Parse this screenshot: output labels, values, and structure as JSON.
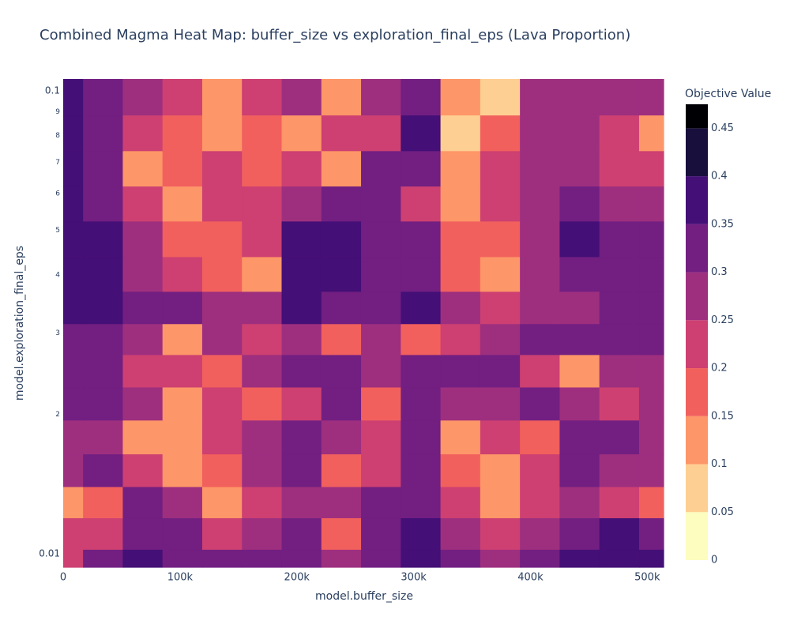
{
  "chart_data": {
    "type": "heatmap",
    "title": "Combined Magma Heat Map: buffer_size vs exploration_final_eps (Lava Proportion)",
    "x_label": "model.buffer_size",
    "y_label": "model.exploration_final_eps",
    "colorbar_title": "Objective Value",
    "y_log": true,
    "xlim": [
      0,
      514000
    ],
    "xticks": [
      0,
      {
        "value": 100000,
        "label": "100k"
      },
      {
        "value": 200000,
        "label": "200k"
      },
      {
        "value": 300000,
        "label": "300k"
      },
      {
        "value": 400000,
        "label": "400k"
      },
      {
        "value": 500000,
        "label": "500k"
      }
    ],
    "ylim": [
      0.00935,
      0.106
    ],
    "yticks": [
      0.01,
      {
        "value": 0.02,
        "label": "2"
      },
      {
        "value": 0.03,
        "label": "3"
      },
      {
        "value": 0.04,
        "label": "4"
      },
      {
        "value": 0.05,
        "label": "5"
      },
      {
        "value": 0.06,
        "label": "6"
      },
      {
        "value": 0.07,
        "label": "7"
      },
      {
        "value": 0.08,
        "label": "8"
      },
      {
        "value": 0.09,
        "label": "9"
      },
      0.1
    ],
    "zlim": [
      0,
      0.475
    ],
    "colorbar_ticks": [
      0,
      0.05,
      0.1,
      0.15,
      0.2,
      0.25,
      0.3,
      0.35,
      0.4,
      0.45
    ],
    "colors": [
      "#fcfdbf",
      "#fecf92",
      "#fd9668",
      "#f1605d",
      "#cd4071",
      "#9e2f7f",
      "#721f81",
      "#440f76",
      "#180f3d",
      "#000004"
    ],
    "x": [
      0,
      34000,
      68000,
      102000,
      136000,
      170000,
      204000,
      238000,
      272000,
      306000,
      340000,
      374000,
      408000,
      442000,
      476000,
      510000
    ],
    "y": [
      0.0095,
      0.011,
      0.013,
      0.015,
      0.018,
      0.021,
      0.025,
      0.029,
      0.034,
      0.04,
      0.048,
      0.057,
      0.068,
      0.081,
      0.097
    ],
    "z": [
      [
        0.22,
        0.3,
        0.35,
        0.33,
        0.3,
        0.33,
        0.3,
        0.28,
        0.33,
        0.36,
        0.3,
        0.25,
        0.3,
        0.36,
        0.36,
        0.36
      ],
      [
        0.22,
        0.2,
        0.33,
        0.3,
        0.2,
        0.25,
        0.3,
        0.15,
        0.3,
        0.35,
        0.28,
        0.2,
        0.25,
        0.33,
        0.35,
        0.33
      ],
      [
        0.12,
        0.18,
        0.3,
        0.25,
        0.12,
        0.2,
        0.28,
        0.25,
        0.3,
        0.32,
        0.2,
        0.12,
        0.2,
        0.25,
        0.2,
        0.15
      ],
      [
        0.25,
        0.3,
        0.2,
        0.13,
        0.18,
        0.25,
        0.3,
        0.15,
        0.2,
        0.3,
        0.15,
        0.1,
        0.2,
        0.3,
        0.28,
        0.25
      ],
      [
        0.28,
        0.25,
        0.12,
        0.1,
        0.22,
        0.28,
        0.3,
        0.25,
        0.22,
        0.3,
        0.12,
        0.2,
        0.15,
        0.3,
        0.3,
        0.28
      ],
      [
        0.3,
        0.3,
        0.28,
        0.1,
        0.2,
        0.15,
        0.2,
        0.3,
        0.15,
        0.3,
        0.25,
        0.25,
        0.3,
        0.25,
        0.2,
        0.28
      ],
      [
        0.3,
        0.33,
        0.2,
        0.22,
        0.15,
        0.25,
        0.3,
        0.3,
        0.28,
        0.33,
        0.3,
        0.32,
        0.2,
        0.12,
        0.25,
        0.28
      ],
      [
        0.3,
        0.3,
        0.25,
        0.12,
        0.25,
        0.2,
        0.28,
        0.15,
        0.25,
        0.15,
        0.2,
        0.28,
        0.3,
        0.3,
        0.3,
        0.3
      ],
      [
        0.35,
        0.35,
        0.3,
        0.3,
        0.28,
        0.25,
        0.35,
        0.33,
        0.3,
        0.35,
        0.25,
        0.2,
        0.25,
        0.28,
        0.3,
        0.3
      ],
      [
        0.35,
        0.35,
        0.28,
        0.2,
        0.18,
        0.1,
        0.35,
        0.37,
        0.3,
        0.3,
        0.15,
        0.12,
        0.25,
        0.33,
        0.33,
        0.33
      ],
      [
        0.36,
        0.35,
        0.25,
        0.18,
        0.15,
        0.2,
        0.35,
        0.38,
        0.3,
        0.3,
        0.15,
        0.18,
        0.25,
        0.35,
        0.33,
        0.3
      ],
      [
        0.37,
        0.33,
        0.22,
        0.12,
        0.2,
        0.22,
        0.25,
        0.3,
        0.32,
        0.2,
        0.1,
        0.2,
        0.28,
        0.3,
        0.28,
        0.25
      ],
      [
        0.35,
        0.3,
        0.12,
        0.18,
        0.2,
        0.15,
        0.22,
        0.1,
        0.3,
        0.3,
        0.12,
        0.2,
        0.25,
        0.25,
        0.22,
        0.2
      ],
      [
        0.35,
        0.3,
        0.2,
        0.15,
        0.12,
        0.18,
        0.12,
        0.2,
        0.2,
        0.35,
        0.05,
        0.15,
        0.25,
        0.25,
        0.22,
        0.1
      ],
      [
        0.35,
        0.3,
        0.28,
        0.2,
        0.1,
        0.2,
        0.25,
        0.1,
        0.25,
        0.3,
        0.1,
        0.08,
        0.25,
        0.25,
        0.25,
        0.25
      ]
    ]
  }
}
